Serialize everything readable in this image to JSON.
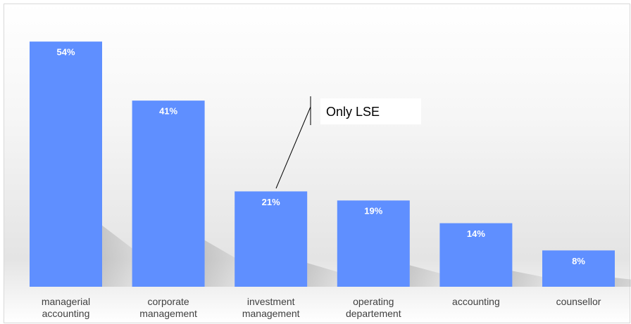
{
  "chart_data": {
    "type": "bar",
    "categories": [
      "managerial accounting",
      "corporate management",
      "investment management",
      "operating departement",
      "accounting",
      "counsellor"
    ],
    "values": [
      54,
      41,
      21,
      19,
      14,
      8
    ],
    "value_labels": [
      "54%",
      "41%",
      "21%",
      "19%",
      "14%",
      "8%"
    ],
    "color": "#5f8fff",
    "annotation": "Only LSE"
  }
}
